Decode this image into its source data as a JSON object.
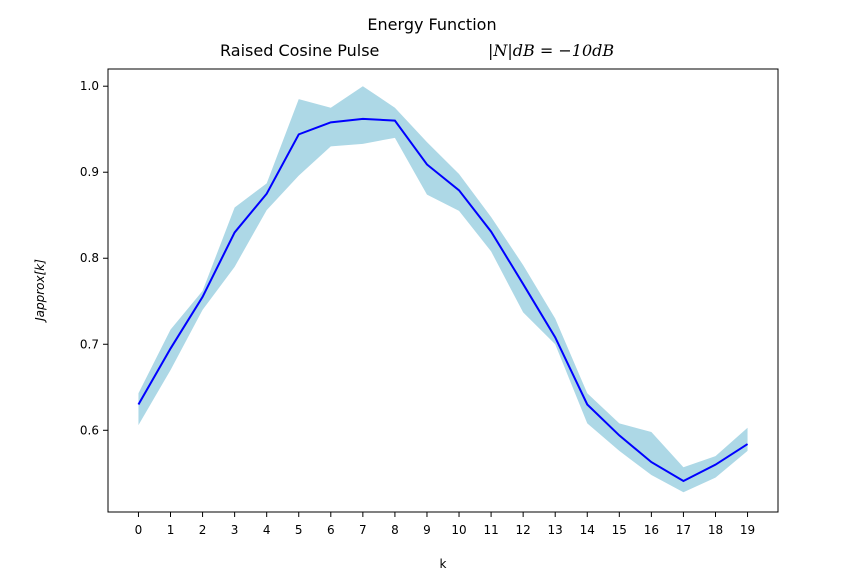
{
  "chart_data": {
    "type": "line",
    "title_line1": "Energy Function",
    "title_line2_text": "Raised Cosine Pulse",
    "title_line2_math": "|N|dB = −10dB",
    "xlabel": "k",
    "ylabel": "Japprox[k]",
    "xlim": [
      -0.95,
      19.95
    ],
    "ylim": [
      0.505,
      1.02
    ],
    "xticks": [
      0,
      1,
      2,
      3,
      4,
      5,
      6,
      7,
      8,
      9,
      10,
      11,
      12,
      13,
      14,
      15,
      16,
      17,
      18,
      19
    ],
    "yticks": [
      0.6,
      0.7,
      0.8,
      0.9,
      1.0
    ],
    "ytick_labels": [
      "0.6",
      "0.7",
      "0.8",
      "0.9",
      "1.0"
    ],
    "x": [
      0,
      1,
      2,
      3,
      4,
      5,
      6,
      7,
      8,
      9,
      10,
      11,
      12,
      13,
      14,
      15,
      16,
      17,
      18,
      19
    ],
    "series": [
      {
        "values": [
          0.63,
          0.695,
          0.755,
          0.83,
          0.875,
          0.944,
          0.958,
          0.962,
          0.96,
          0.909,
          0.879,
          0.831,
          0.77,
          0.708,
          0.63,
          0.594,
          0.563,
          0.541,
          0.56,
          0.584
        ],
        "color": "#0000ff"
      }
    ],
    "band": {
      "upper": [
        0.643,
        0.717,
        0.762,
        0.859,
        0.887,
        0.985,
        0.975,
        1.0,
        0.975,
        0.935,
        0.898,
        0.848,
        0.792,
        0.73,
        0.643,
        0.608,
        0.598,
        0.557,
        0.57,
        0.603
      ],
      "lower": [
        0.606,
        0.67,
        0.74,
        0.79,
        0.856,
        0.896,
        0.93,
        0.933,
        0.94,
        0.874,
        0.855,
        0.808,
        0.737,
        0.7,
        0.608,
        0.576,
        0.548,
        0.528,
        0.545,
        0.576
      ],
      "color": "#add8e6"
    },
    "grid": false
  }
}
